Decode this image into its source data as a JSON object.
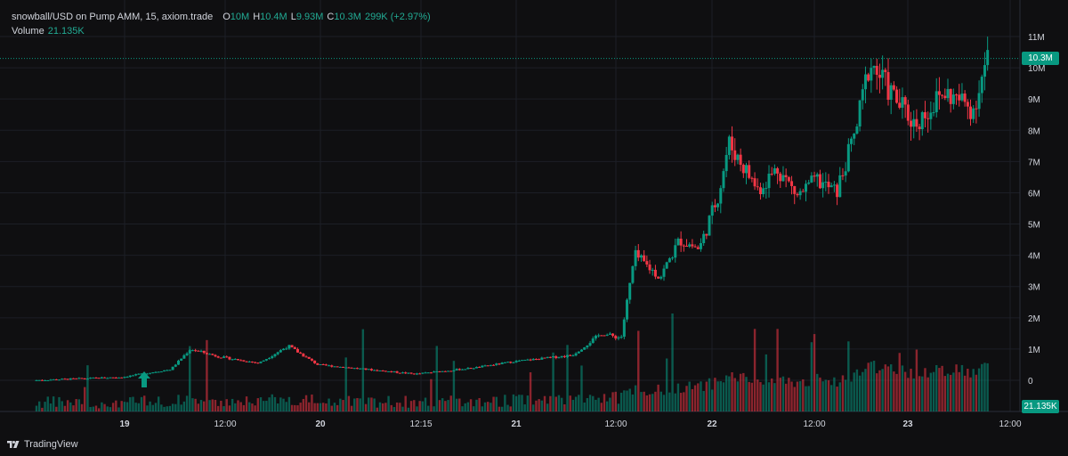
{
  "header": {
    "symbol_line": "snowball/USD on Pump AMM, 15, axiom.trade",
    "ohlc": [
      {
        "label": "O",
        "value": "10M"
      },
      {
        "label": "H",
        "value": "10.4M"
      },
      {
        "label": "L",
        "value": "9.93M"
      },
      {
        "label": "C",
        "value": "10.3M"
      }
    ],
    "change": "299K (+2.97%)",
    "volume_label": "Volume",
    "volume_value": "21.135K"
  },
  "price_scale": {
    "labels": [
      "11M",
      "10M",
      "9M",
      "8M",
      "7M",
      "6M",
      "5M",
      "4M",
      "3M",
      "2M",
      "1M",
      "0"
    ],
    "current_price_tag": "10.3M",
    "volume_tag": "21.135K"
  },
  "time_scale": {
    "labels": [
      "19",
      "12:00",
      "20",
      "12:15",
      "21",
      "12:00",
      "22",
      "12:00",
      "23",
      "12:00"
    ],
    "bold_labels": [
      "19",
      "20",
      "21",
      "22",
      "23"
    ]
  },
  "footer": {
    "brand": "TradingView"
  },
  "colors": {
    "background": "#0f0f11",
    "up": "#089981",
    "down": "#f23645",
    "text": "#d1d4dc",
    "grid": "#1c1f26",
    "accent": "#22ab94"
  },
  "marker": {
    "icon": "arrow-up-icon"
  },
  "chart_data": {
    "type": "candlestick",
    "symbol": "snowball/USD",
    "interval": "15",
    "y_unit": "USD market cap (M)",
    "ylim": [
      -0.2,
      11.5
    ],
    "last_close": 10.3,
    "price_path_keypoints": [
      {
        "day": 18.55,
        "price": 0.0
      },
      {
        "day": 19.0,
        "price": 0.1
      },
      {
        "day": 19.25,
        "price": 0.35
      },
      {
        "day": 19.35,
        "price": 1.0
      },
      {
        "day": 19.5,
        "price": 0.75
      },
      {
        "day": 19.7,
        "price": 0.55
      },
      {
        "day": 19.85,
        "price": 1.1
      },
      {
        "day": 20.0,
        "price": 0.5
      },
      {
        "day": 20.5,
        "price": 0.2
      },
      {
        "day": 20.8,
        "price": 0.4
      },
      {
        "day": 21.0,
        "price": 0.6
      },
      {
        "day": 21.3,
        "price": 0.8
      },
      {
        "day": 21.45,
        "price": 1.5
      },
      {
        "day": 21.55,
        "price": 1.35
      },
      {
        "day": 21.62,
        "price": 4.0
      },
      {
        "day": 21.75,
        "price": 3.3
      },
      {
        "day": 21.85,
        "price": 4.5
      },
      {
        "day": 21.95,
        "price": 4.2
      },
      {
        "day": 22.05,
        "price": 6.0
      },
      {
        "day": 22.1,
        "price": 7.6
      },
      {
        "day": 22.25,
        "price": 6.1
      },
      {
        "day": 22.35,
        "price": 6.8
      },
      {
        "day": 22.45,
        "price": 5.9
      },
      {
        "day": 22.55,
        "price": 6.4
      },
      {
        "day": 22.65,
        "price": 6.0
      },
      {
        "day": 22.75,
        "price": 8.0
      },
      {
        "day": 22.82,
        "price": 10.2
      },
      {
        "day": 22.95,
        "price": 9.0
      },
      {
        "day": 23.05,
        "price": 8.2
      },
      {
        "day": 23.2,
        "price": 9.2
      },
      {
        "day": 23.35,
        "price": 8.7
      },
      {
        "day": 23.42,
        "price": 10.3
      }
    ]
  }
}
